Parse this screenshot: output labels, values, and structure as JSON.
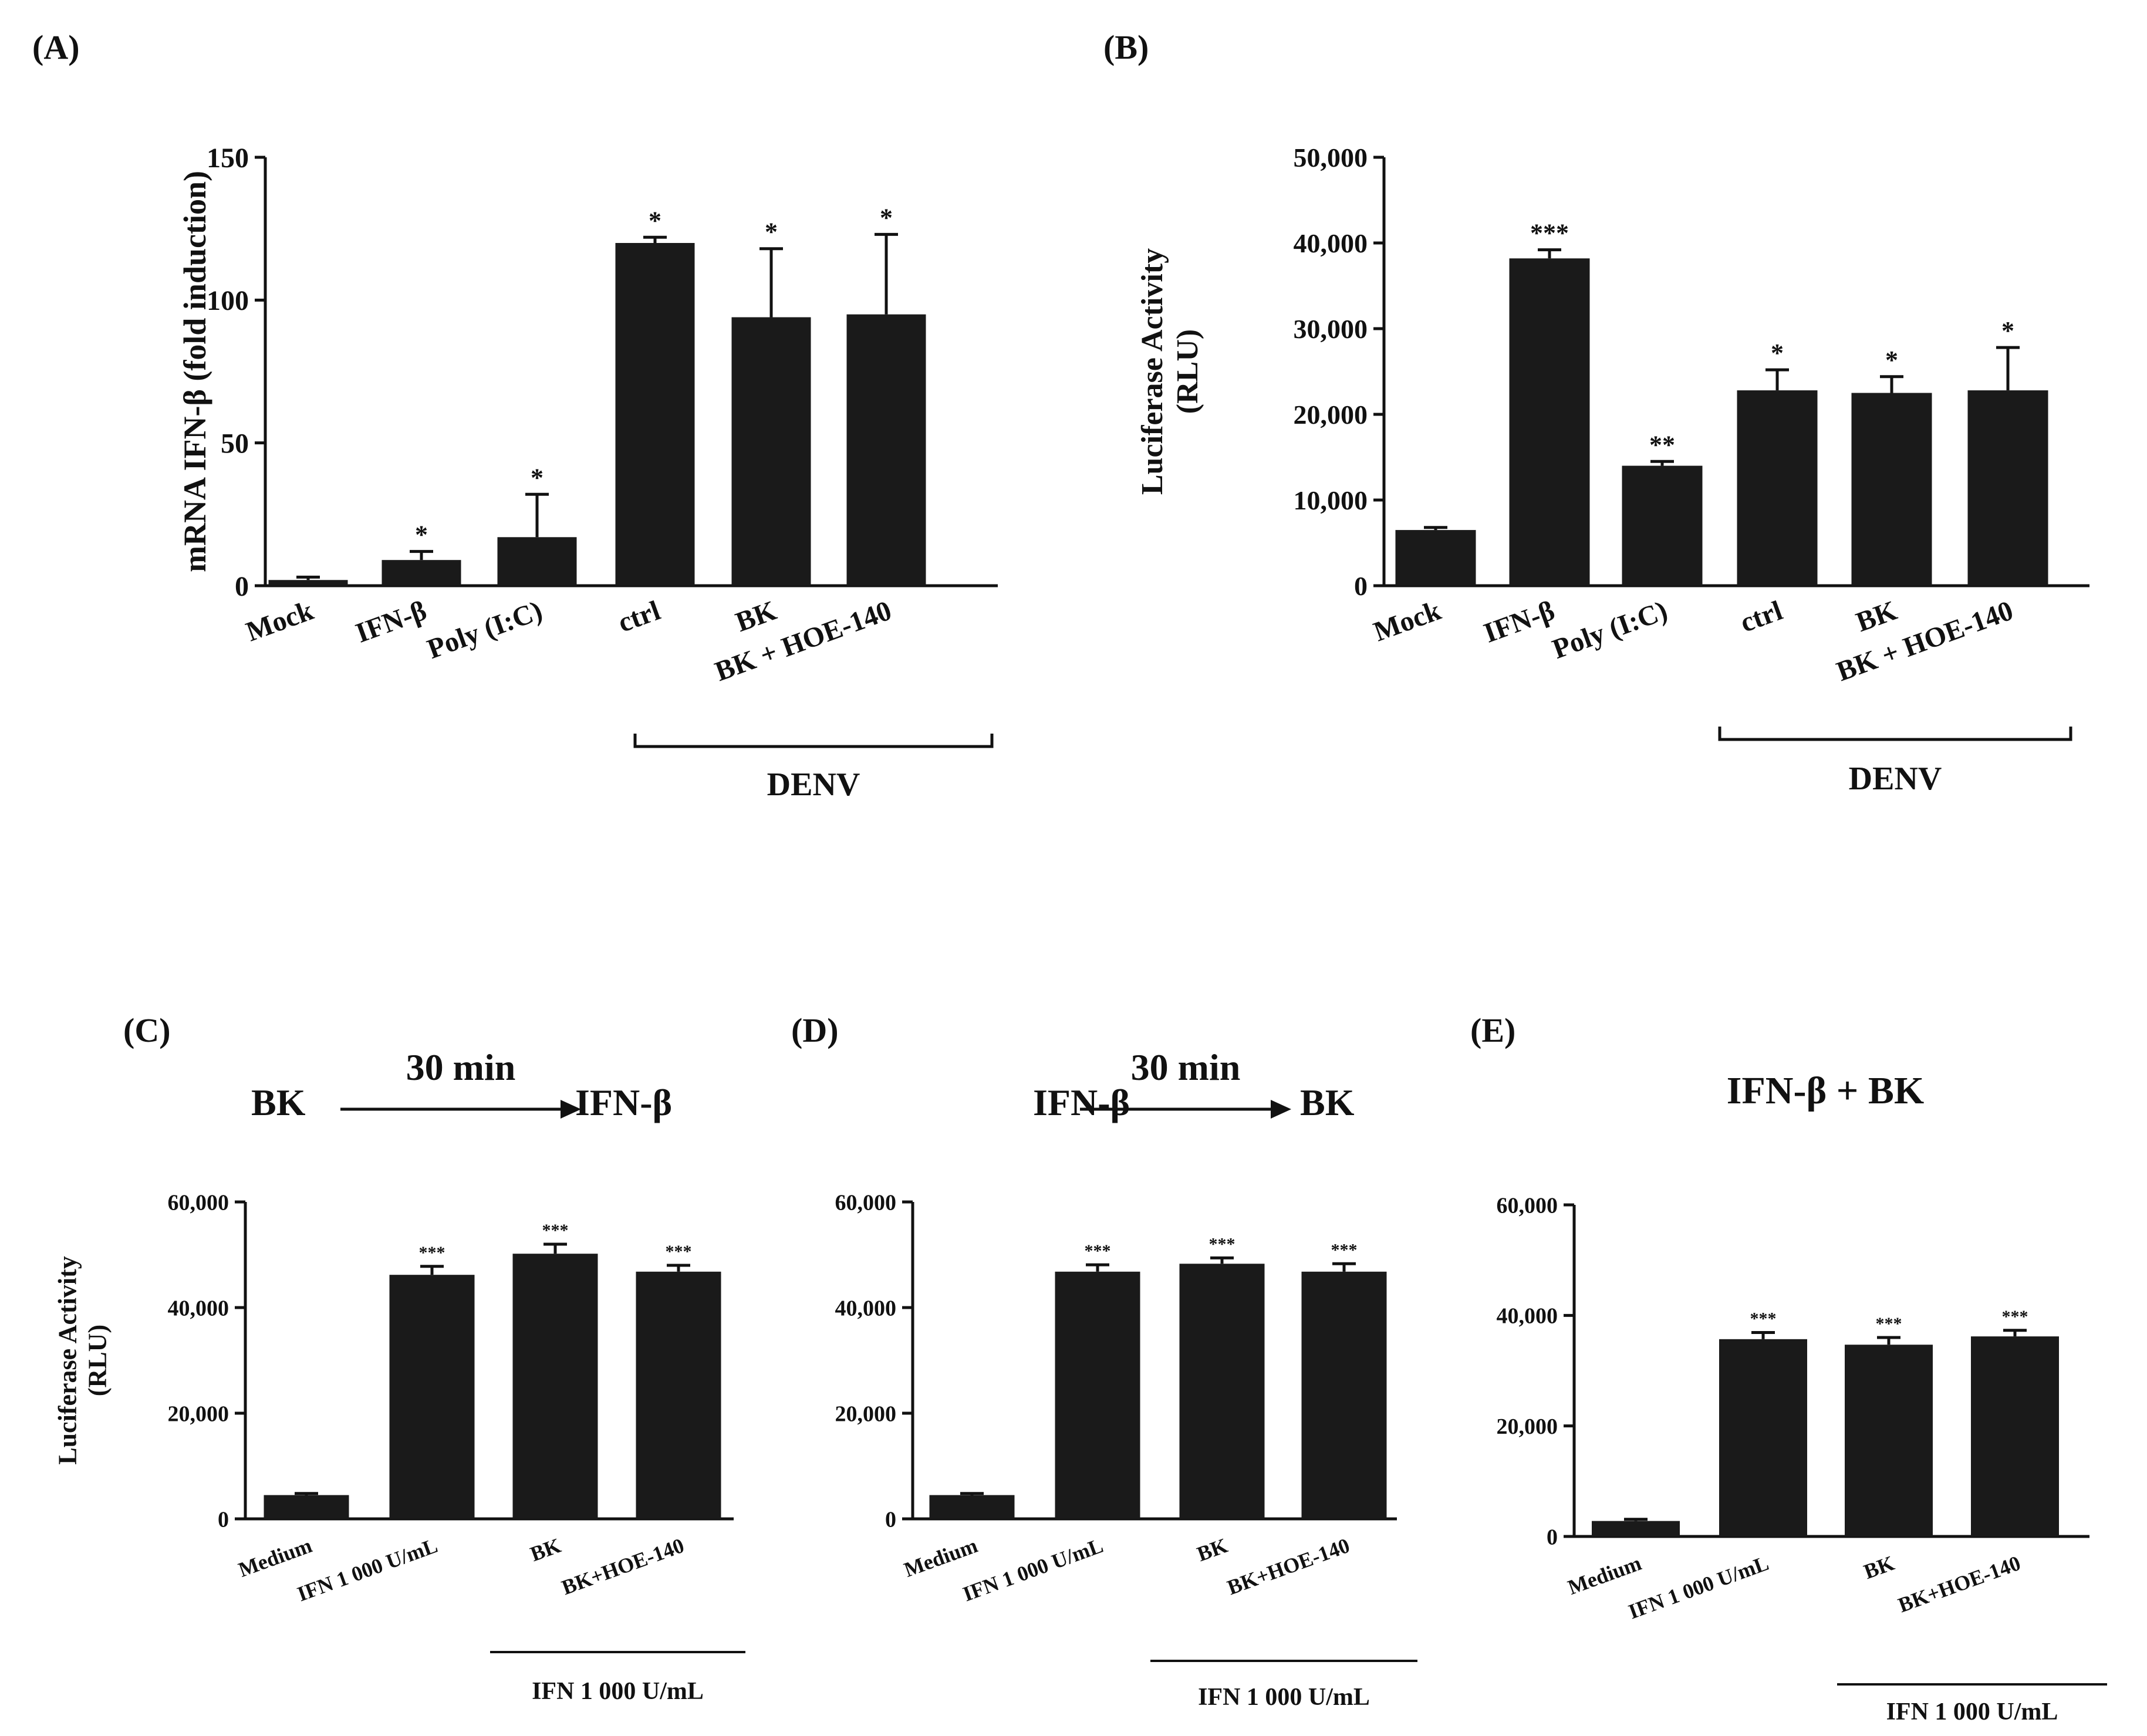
{
  "chart_data": [
    {
      "id": "A",
      "type": "bar",
      "panel_label": "(A)",
      "title": "",
      "ylabel": [
        "mRNA IFN-β (fold induction)"
      ],
      "xlabel": "",
      "ylim": [
        0,
        150
      ],
      "yticks": [
        0,
        50,
        100,
        150
      ],
      "tick_labels": [
        "0",
        "50",
        "100",
        "150"
      ],
      "categories": [
        "Mock",
        "IFN-β",
        "Poly (I:C)",
        "ctrl",
        "BK",
        "BK + HOE-140"
      ],
      "values": [
        2,
        9,
        17,
        120,
        94,
        95
      ],
      "errors": [
        1,
        3,
        15,
        2,
        24,
        28
      ],
      "significance": [
        "",
        "*",
        "*",
        "*",
        "*",
        "*"
      ],
      "group_bracket": {
        "label": "DENV",
        "from": 3,
        "to": 5
      }
    },
    {
      "id": "B",
      "type": "bar",
      "panel_label": "(B)",
      "title": "",
      "ylabel": [
        "Luciferase Activity",
        "(RLU)"
      ],
      "xlabel": "",
      "ylim": [
        0,
        50000
      ],
      "yticks": [
        0,
        10000,
        20000,
        30000,
        40000,
        50000
      ],
      "tick_labels": [
        "0",
        "10,000",
        "20,000",
        "30,000",
        "40,000",
        "50,000"
      ],
      "categories": [
        "Mock",
        "IFN-β",
        "Poly (I:C)",
        "ctrl",
        "BK",
        "BK + HOE-140"
      ],
      "values": [
        6500,
        38200,
        14000,
        22800,
        22500,
        22800
      ],
      "errors": [
        300,
        1000,
        500,
        2400,
        1900,
        5000
      ],
      "significance": [
        "",
        "***",
        "**",
        "*",
        "*",
        "*"
      ],
      "group_bracket": {
        "label": "DENV",
        "from": 3,
        "to": 5
      }
    },
    {
      "id": "C",
      "type": "bar",
      "panel_label": "(C)",
      "scheme": {
        "left": "BK",
        "arrow": "30 min",
        "right": "IFN-β"
      },
      "title": "",
      "ylabel": [
        "Luciferase Activity",
        "(RLU)"
      ],
      "xlabel": "",
      "ylim": [
        0,
        60000
      ],
      "yticks": [
        0,
        20000,
        40000,
        60000
      ],
      "tick_labels": [
        "0",
        "20,000",
        "40,000",
        "60,000"
      ],
      "categories": [
        "Medium",
        "IFN 1 000 U/mL",
        "BK",
        "BK+HOE-140"
      ],
      "values": [
        4500,
        46200,
        50200,
        46800
      ],
      "errors": [
        300,
        1600,
        1800,
        1200
      ],
      "significance": [
        "",
        "***",
        "***",
        "***"
      ],
      "group_bracket": {
        "label": "IFN 1 000 U/mL",
        "from": 2,
        "to": 3
      }
    },
    {
      "id": "D",
      "type": "bar",
      "panel_label": "(D)",
      "scheme": {
        "left": "IFN-β",
        "arrow": "30 min",
        "right": "BK"
      },
      "title": "",
      "ylabel": [],
      "xlabel": "",
      "ylim": [
        0,
        60000
      ],
      "yticks": [
        0,
        20000,
        40000,
        60000
      ],
      "tick_labels": [
        "0",
        "20,000",
        "40,000",
        "60,000"
      ],
      "categories": [
        "Medium",
        "IFN 1 000 U/mL",
        "BK",
        "BK+HOE-140"
      ],
      "values": [
        4500,
        46800,
        48300,
        46800
      ],
      "errors": [
        300,
        1300,
        1100,
        1500
      ],
      "significance": [
        "",
        "***",
        "***",
        "***"
      ],
      "group_bracket": {
        "label": "IFN 1 000 U/mL",
        "from": 2,
        "to": 3
      }
    },
    {
      "id": "E",
      "type": "bar",
      "panel_label": "(E)",
      "heading": "IFN-β + BK",
      "title": "",
      "ylabel": [],
      "xlabel": "",
      "ylim": [
        0,
        60000
      ],
      "yticks": [
        0,
        20000,
        40000,
        60000
      ],
      "tick_labels": [
        "0",
        "20,000",
        "40,000",
        "60,000"
      ],
      "categories": [
        "Medium",
        "IFN 1 000 U/mL",
        "BK",
        "BK+HOE-140"
      ],
      "values": [
        2800,
        35700,
        34700,
        36200
      ],
      "errors": [
        300,
        1200,
        1300,
        1100
      ],
      "significance": [
        "",
        "***",
        "***",
        "***"
      ],
      "group_bracket": {
        "label": "IFN 1 000 U/mL",
        "from": 2,
        "to": 3
      }
    }
  ]
}
